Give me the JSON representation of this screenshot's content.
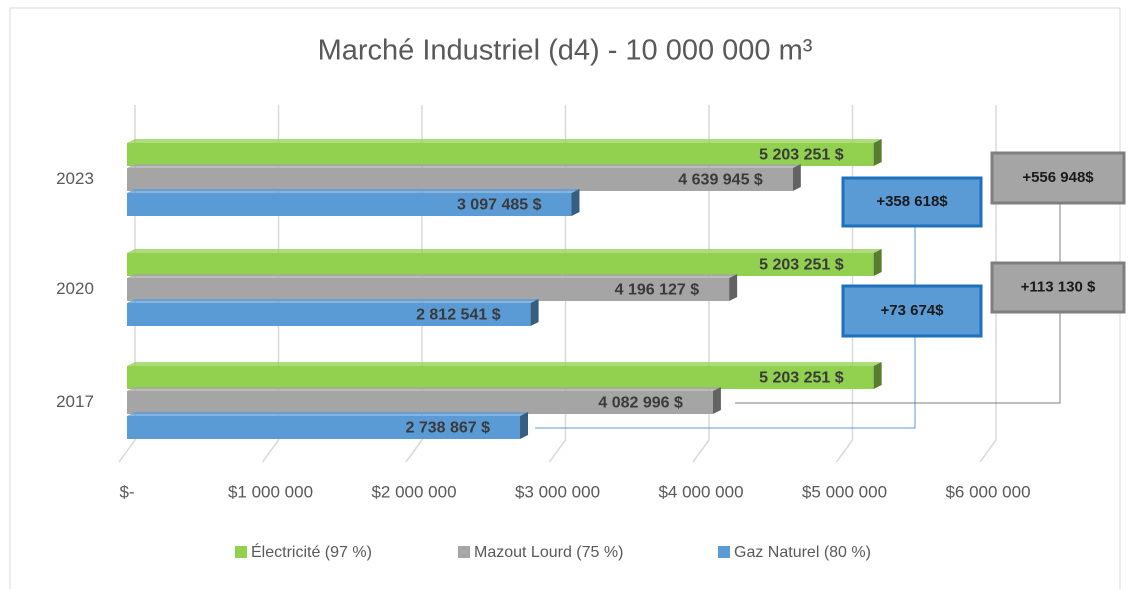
{
  "chart_data": {
    "type": "bar",
    "orientation": "horizontal",
    "title": "Marché Industriel (d4) - 10 000 000 m³",
    "categories": [
      "2023",
      "2020",
      "2017"
    ],
    "series": [
      {
        "name": "Électricité (97 %)",
        "color": "#92d050",
        "values": [
          5203251,
          5203251,
          5203251
        ],
        "value_labels": [
          "5 203 251 $",
          "5 203 251 $",
          "5 203 251 $"
        ]
      },
      {
        "name": "Mazout Lourd (75 %)",
        "color": "#a5a5a5",
        "values": [
          4639945,
          4196127,
          4082996
        ],
        "value_labels": [
          "4 639 945 $",
          "4 196 127 $",
          "4 082 996 $"
        ]
      },
      {
        "name": "Gaz Naturel (80 %)",
        "color": "#5b9bd5",
        "values": [
          3097485,
          2812541,
          2738867
        ],
        "value_labels": [
          "3 097 485 $",
          "2 812 541 $",
          "2 738 867 $"
        ]
      }
    ],
    "xlim": [
      0,
      6000000
    ],
    "xticks": [
      {
        "value": 0,
        "label": "$-"
      },
      {
        "value": 1000000,
        "label": "$1 000 000"
      },
      {
        "value": 2000000,
        "label": "$2 000 000"
      },
      {
        "value": 3000000,
        "label": "$3 000 000"
      },
      {
        "value": 4000000,
        "label": "$4 000 000"
      },
      {
        "value": 5000000,
        "label": "$5 000 000"
      },
      {
        "value": 6000000,
        "label": "$6 000 000"
      }
    ],
    "grid": true,
    "legend": "bottom",
    "annotations": [
      {
        "text": "+358 618$",
        "color": "#5b9bd5"
      },
      {
        "text": "+73 674$",
        "color": "#5b9bd5"
      },
      {
        "text": "+556 948$",
        "color": "#a5a5a5"
      },
      {
        "text": "+113 130 $",
        "color": "#a5a5a5"
      }
    ]
  }
}
